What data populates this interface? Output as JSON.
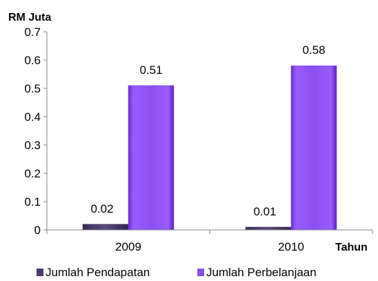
{
  "chart_data": {
    "type": "bar",
    "categories": [
      "2009",
      "2010"
    ],
    "series": [
      {
        "name": "Jumlah Pendapatan",
        "values": [
          0.02,
          0.01
        ],
        "color": "#4a3a6e"
      },
      {
        "name": "Jumlah Perbelanjaan",
        "values": [
          0.51,
          0.58
        ],
        "color": "#8b4ff0"
      }
    ],
    "data_labels": [
      "0.02",
      "0.51",
      "0.01",
      "0.58"
    ],
    "ylabel": "RM Juta",
    "xlabel": "Tahun",
    "ylim": [
      0,
      0.7
    ],
    "yticks": [
      "0",
      "0.1",
      "0.2",
      "0.3",
      "0.4",
      "0.5",
      "0.6",
      "0.7"
    ],
    "grid": false,
    "legend_position": "bottom"
  }
}
